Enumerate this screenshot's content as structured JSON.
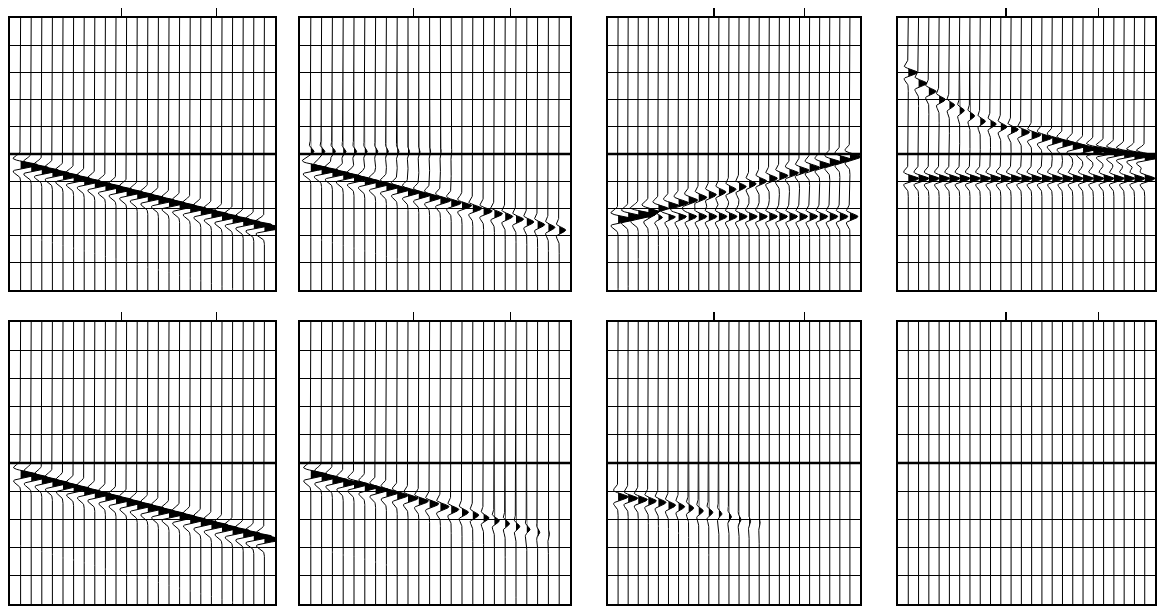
{
  "chart_data": [
    {
      "type": "wiggle",
      "xlim": [
        -1,
        24
      ],
      "ylim": [
        10,
        0
      ],
      "xticks": [
        9.5,
        18.5
      ],
      "yticks": [
        0,
        1,
        2,
        3,
        4,
        5,
        6,
        7,
        8,
        9,
        10
      ],
      "grid": true,
      "tick_labels": false,
      "reference_time": 5,
      "x": [
        0,
        1,
        2,
        3,
        4,
        5,
        6,
        7,
        8,
        9,
        10,
        11,
        12,
        13,
        14,
        15,
        16,
        17,
        18,
        19,
        20,
        21,
        22,
        23
      ],
      "events": [
        {
          "times": [
            5.4,
            5.5,
            5.6,
            5.7,
            5.8,
            5.9,
            6.0,
            6.1,
            6.2,
            6.3,
            6.4,
            6.5,
            6.6,
            6.7,
            6.8,
            6.9,
            7.0,
            7.1,
            7.2,
            7.3,
            7.4,
            7.5,
            7.6,
            7.7
          ],
          "amplitudes": [
            1.6,
            1.6,
            1.6,
            1.55,
            1.55,
            1.55,
            1.5,
            1.5,
            1.5,
            1.5,
            1.5,
            1.5,
            1.5,
            1.5,
            1.5,
            1.5,
            1.5,
            1.5,
            1.55,
            1.55,
            1.6,
            1.6,
            1.7,
            1.8
          ]
        }
      ]
    },
    {
      "type": "wiggle",
      "xlim": [
        -1,
        24
      ],
      "ylim": [
        10,
        0
      ],
      "xticks": [
        9.5,
        18.5
      ],
      "yticks": [
        0,
        1,
        2,
        3,
        4,
        5,
        6,
        7,
        8,
        9,
        10
      ],
      "grid": true,
      "tick_labels": false,
      "reference_time": 5,
      "x": [
        0,
        1,
        2,
        3,
        4,
        5,
        6,
        7,
        8,
        9,
        10,
        11,
        12,
        13,
        14,
        15,
        16,
        17,
        18,
        19,
        20,
        21,
        22,
        23
      ],
      "events": [
        {
          "times": [
            5.5,
            5.6,
            5.7,
            5.8,
            5.9,
            6.0,
            6.1,
            6.2,
            6.3,
            6.4,
            6.5,
            6.6,
            6.7,
            6.8,
            6.9,
            7.0,
            7.1,
            7.2,
            7.3,
            7.4,
            7.5,
            7.6,
            7.7,
            7.8
          ],
          "amplitudes": [
            1.6,
            1.55,
            1.5,
            1.45,
            1.4,
            1.35,
            1.3,
            1.25,
            1.2,
            1.15,
            1.1,
            1.05,
            1.0,
            0.95,
            0.9,
            0.85,
            0.8,
            0.75,
            0.7,
            0.7,
            0.65,
            0.65,
            0.6,
            0.6
          ]
        },
        {
          "times": [
            4.9,
            4.9,
            4.9,
            4.9,
            4.9,
            4.9,
            4.9,
            4.9,
            4.9,
            4.9,
            4.9,
            4.9,
            4.9,
            4.9,
            4.9,
            4.9,
            4.9,
            4.9,
            4.9,
            4.9,
            4.9,
            4.9,
            4.9,
            4.9
          ],
          "amplitudes": [
            0.3,
            0.3,
            0.28,
            0.26,
            0.24,
            0.22,
            0.2,
            0.18,
            0.16,
            0.14,
            0.12,
            0.1,
            0.08,
            0.06,
            0.04,
            0.02,
            0,
            0,
            0,
            0,
            0,
            0,
            0,
            0
          ]
        }
      ]
    },
    {
      "type": "wiggle",
      "xlim": [
        -1,
        24
      ],
      "ylim": [
        10,
        0
      ],
      "xticks": [
        9.5,
        18.5
      ],
      "yticks": [
        0,
        1,
        2,
        3,
        4,
        5,
        6,
        7,
        8,
        9,
        10
      ],
      "grid": true,
      "tick_labels": false,
      "reference_time": 5,
      "x": [
        0,
        1,
        2,
        3,
        4,
        5,
        6,
        7,
        8,
        9,
        10,
        11,
        12,
        13,
        14,
        15,
        16,
        17,
        18,
        19,
        20,
        21,
        22,
        23
      ],
      "events": [
        {
          "times": [
            7.4,
            7.3,
            7.2,
            7.1,
            7.0,
            6.9,
            6.8,
            6.7,
            6.6,
            6.5,
            6.4,
            6.3,
            6.2,
            6.1,
            6.0,
            5.9,
            5.8,
            5.7,
            5.6,
            5.5,
            5.4,
            5.3,
            5.2,
            5.1
          ],
          "amplitudes": [
            1.6,
            1.5,
            1.4,
            1.3,
            1.2,
            1.1,
            1.0,
            0.9,
            0.8,
            0.75,
            0.7,
            0.7,
            0.7,
            0.7,
            0.75,
            0.8,
            0.85,
            0.9,
            0.95,
            1.0,
            1.05,
            1.1,
            1.1,
            1.1
          ]
        },
        {
          "times": [
            7.3,
            7.3,
            7.3,
            7.3,
            7.3,
            7.3,
            7.3,
            7.3,
            7.3,
            7.3,
            7.3,
            7.3,
            7.3,
            7.3,
            7.3,
            7.3,
            7.3,
            7.3,
            7.3,
            7.3,
            7.3,
            7.3,
            7.3,
            7.3
          ],
          "amplitudes": [
            0,
            0,
            0.6,
            0.8,
            0.8,
            0.8,
            0.8,
            0.8,
            0.8,
            0.8,
            0.8,
            0.8,
            0.8,
            0.8,
            0.8,
            0.8,
            0.8,
            0.8,
            0.8,
            0.8,
            0.8,
            0.8,
            0.8,
            0.8
          ]
        }
      ]
    },
    {
      "type": "wiggle",
      "xlim": [
        -1,
        24
      ],
      "ylim": [
        10,
        0
      ],
      "xticks": [
        9.5,
        18.5
      ],
      "yticks": [
        0,
        1,
        2,
        3,
        4,
        5,
        6,
        7,
        8,
        9,
        10
      ],
      "grid": true,
      "tick_labels": false,
      "reference_time": 5,
      "x": [
        0,
        1,
        2,
        3,
        4,
        5,
        6,
        7,
        8,
        9,
        10,
        11,
        12,
        13,
        14,
        15,
        16,
        17,
        18,
        19,
        20,
        21,
        22,
        23
      ],
      "events": [
        {
          "times": [
            2.0,
            2.4,
            2.7,
            3.0,
            3.2,
            3.4,
            3.6,
            3.8,
            3.9,
            4.0,
            4.1,
            4.2,
            4.3,
            4.4,
            4.5,
            4.6,
            4.7,
            4.8,
            4.85,
            4.9,
            4.95,
            5.0,
            5.05,
            5.1
          ],
          "amplitudes": [
            0.9,
            0.8,
            0.7,
            0.6,
            0.5,
            0.45,
            0.45,
            0.5,
            0.55,
            0.6,
            0.7,
            0.8,
            0.9,
            1.0,
            1.1,
            1.2,
            1.3,
            1.4,
            1.5,
            1.6,
            1.6,
            1.7,
            1.7,
            1.8
          ]
        },
        {
          "times": [
            5.9,
            5.9,
            5.9,
            5.9,
            5.9,
            5.9,
            5.9,
            5.9,
            5.9,
            5.9,
            5.9,
            5.9,
            5.9,
            5.9,
            5.9,
            5.9,
            5.9,
            5.9,
            5.9,
            5.9,
            5.9,
            5.9,
            5.9,
            5.9
          ],
          "amplitudes": [
            1.0,
            1.0,
            1.0,
            1.0,
            1.0,
            1.0,
            1.0,
            1.0,
            1.0,
            1.0,
            1.0,
            1.0,
            1.0,
            1.0,
            1.0,
            1.0,
            1.0,
            1.0,
            1.0,
            1.0,
            1.0,
            1.0,
            1.0,
            1.0
          ]
        }
      ]
    },
    {
      "type": "wiggle",
      "xlim": [
        -1,
        24
      ],
      "ylim": [
        10,
        0
      ],
      "xticks": [
        9.5,
        18.5
      ],
      "yticks": [
        0,
        1,
        2,
        3,
        4,
        5,
        6,
        7,
        8,
        9,
        10
      ],
      "grid": true,
      "tick_labels": false,
      "reference_time": 5,
      "x": [
        0,
        1,
        2,
        3,
        4,
        5,
        6,
        7,
        8,
        9,
        10,
        11,
        12,
        13,
        14,
        15,
        16,
        17,
        18,
        19,
        20,
        21,
        22,
        23
      ],
      "events": [
        {
          "times": [
            5.4,
            5.5,
            5.6,
            5.7,
            5.8,
            5.9,
            6.0,
            6.1,
            6.2,
            6.3,
            6.4,
            6.5,
            6.6,
            6.7,
            6.8,
            6.9,
            7.0,
            7.1,
            7.2,
            7.3,
            7.4,
            7.5,
            7.6,
            7.7
          ],
          "amplitudes": [
            1.5,
            1.5,
            1.45,
            1.5,
            1.4,
            1.5,
            1.45,
            1.5,
            1.4,
            1.5,
            1.45,
            1.5,
            1.5,
            1.45,
            1.5,
            1.5,
            1.45,
            1.5,
            1.55,
            1.5,
            1.6,
            1.6,
            1.7,
            1.7
          ]
        }
      ]
    },
    {
      "type": "wiggle",
      "xlim": [
        -1,
        24
      ],
      "ylim": [
        10,
        0
      ],
      "xticks": [
        9.5,
        18.5
      ],
      "yticks": [
        0,
        1,
        2,
        3,
        4,
        5,
        6,
        7,
        8,
        9,
        10
      ],
      "grid": true,
      "tick_labels": false,
      "reference_time": 5,
      "x": [
        0,
        1,
        2,
        3,
        4,
        5,
        6,
        7,
        8,
        9,
        10,
        11,
        12,
        13,
        14,
        15,
        16,
        17,
        18,
        19,
        20,
        21,
        22,
        23
      ],
      "events": [
        {
          "times": [
            5.4,
            5.5,
            5.6,
            5.7,
            5.75,
            5.85,
            5.95,
            6.05,
            6.15,
            6.25,
            6.35,
            6.45,
            6.55,
            6.65,
            6.75,
            6.85,
            6.95,
            7.05,
            7.15,
            7.25,
            7.35,
            7.45,
            7.5,
            7.55
          ],
          "amplitudes": [
            1.5,
            1.45,
            1.4,
            1.35,
            1.3,
            1.25,
            1.2,
            1.1,
            1.0,
            0.95,
            0.9,
            0.85,
            0.8,
            0.7,
            0.6,
            0.55,
            0.5,
            0.45,
            0.4,
            0.35,
            0.3,
            0.2,
            0.1,
            0
          ]
        }
      ]
    },
    {
      "type": "wiggle",
      "xlim": [
        -1,
        24
      ],
      "ylim": [
        10,
        0
      ],
      "xticks": [
        9.5,
        18.5
      ],
      "yticks": [
        0,
        1,
        2,
        3,
        4,
        5,
        6,
        7,
        8,
        9,
        10
      ],
      "grid": true,
      "tick_labels": false,
      "reference_time": 5,
      "x": [
        0,
        1,
        2,
        3,
        4,
        5,
        6,
        7,
        8,
        9,
        10,
        11,
        12,
        13,
        14,
        15,
        16,
        17,
        18,
        19,
        20,
        21,
        22,
        23
      ],
      "events": [
        {
          "times": [
            6.2,
            6.25,
            6.3,
            6.35,
            6.4,
            6.5,
            6.55,
            6.6,
            6.7,
            6.75,
            6.8,
            6.9,
            7.0,
            7.05,
            7.1,
            7.2,
            7.25,
            7.3,
            7.4,
            7.45,
            7.5,
            7.55,
            7.6,
            7.65
          ],
          "amplitudes": [
            1.0,
            0.95,
            0.9,
            0.8,
            0.75,
            0.7,
            0.6,
            0.5,
            0.45,
            0.4,
            0.3,
            0.25,
            0.2,
            0.15,
            0.1,
            0.05,
            0,
            0,
            0,
            0,
            0,
            0,
            0,
            0
          ]
        }
      ]
    },
    {
      "type": "wiggle",
      "xlim": [
        -1,
        24
      ],
      "ylim": [
        10,
        0
      ],
      "xticks": [
        9.5,
        18.5
      ],
      "yticks": [
        0,
        1,
        2,
        3,
        4,
        5,
        6,
        7,
        8,
        9,
        10
      ],
      "grid": true,
      "tick_labels": false,
      "reference_time": 5,
      "x": [
        0,
        1,
        2,
        3,
        4,
        5,
        6,
        7,
        8,
        9,
        10,
        11,
        12,
        13,
        14,
        15,
        16,
        17,
        18,
        19,
        20,
        21,
        22,
        23
      ],
      "events": []
    }
  ]
}
